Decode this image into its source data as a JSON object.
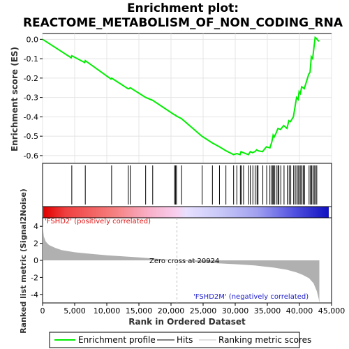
{
  "title_line1": "Enrichment plot:",
  "title_line2": "REACTOME_METABOLISM_OF_NON_CODING_RNA",
  "colors": {
    "profile": "#00ee00",
    "hits": "#000000",
    "metric_fill": "#b0b0b0",
    "positive_label": "#e01010",
    "negative_label": "#2020cc",
    "zero_line": "#bbbbbb"
  },
  "chart_data": {
    "type": "line",
    "xlabel": "Rank in Ordered Dataset",
    "x_ticks": [
      0,
      5000,
      10000,
      15000,
      20000,
      25000,
      30000,
      35000,
      40000,
      45000
    ],
    "x_tick_labels": [
      "0",
      "5,000",
      "10,000",
      "15,000",
      "20,000",
      "25,000",
      "30,000",
      "35,000",
      "40,000",
      "45,000"
    ],
    "xlim": [
      0,
      45000
    ],
    "dataset_size": 43100,
    "es_panel": {
      "ylabel": "Enrichment score (ES)",
      "ylim": [
        -0.64,
        0.03
      ],
      "y_ticks": [
        0.0,
        -0.1,
        -0.2,
        -0.3,
        -0.4,
        -0.5,
        -0.6
      ],
      "y_tick_labels": [
        "0.0",
        "-0.1",
        "-0.2",
        "-0.3",
        "-0.4",
        "-0.5",
        "-0.6"
      ],
      "grid": true,
      "series": [
        {
          "name": "Enrichment profile",
          "x": [
            0,
            4450,
            4550,
            6550,
            6650,
            10650,
            10750,
            13300,
            13450,
            13650,
            16050,
            17150,
            20550,
            20650,
            20800,
            21650,
            24800,
            26450,
            27550,
            28550,
            29750,
            30250,
            30750,
            30900,
            31250,
            32050,
            32350,
            32700,
            33050,
            33350,
            33550,
            34250,
            34850,
            35400,
            35700,
            35900,
            36050,
            36350,
            36650,
            37050,
            37550,
            38050,
            38350,
            38600,
            39050,
            39300,
            39550,
            39800,
            39950,
            40150,
            40350,
            40550,
            40750,
            41450,
            41650,
            41850,
            42050,
            42250,
            42450,
            42650,
            42850,
            43100
          ],
          "y": [
            0.0,
            -0.095,
            -0.085,
            -0.12,
            -0.11,
            -0.205,
            -0.2,
            -0.255,
            -0.255,
            -0.25,
            -0.3,
            -0.315,
            -0.39,
            -0.39,
            -0.395,
            -0.41,
            -0.5,
            -0.535,
            -0.555,
            -0.575,
            -0.595,
            -0.59,
            -0.595,
            -0.58,
            -0.585,
            -0.595,
            -0.58,
            -0.585,
            -0.58,
            -0.57,
            -0.575,
            -0.58,
            -0.555,
            -0.56,
            -0.53,
            -0.495,
            -0.505,
            -0.485,
            -0.46,
            -0.465,
            -0.445,
            -0.46,
            -0.42,
            -0.425,
            -0.4,
            -0.35,
            -0.3,
            -0.31,
            -0.27,
            -0.28,
            -0.245,
            -0.25,
            -0.255,
            -0.18,
            -0.17,
            -0.09,
            -0.1,
            -0.045,
            0.01,
            0.005,
            -0.005,
            -0.01
          ]
        }
      ]
    },
    "hits": [
      4550,
      6650,
      10750,
      13350,
      13650,
      16050,
      17150,
      20550,
      20700,
      20850,
      21650,
      24850,
      26450,
      27550,
      28550,
      29750,
      30250,
      30800,
      30950,
      31300,
      32100,
      32350,
      32750,
      33100,
      33400,
      33550,
      34300,
      34900,
      35400,
      35700,
      35850,
      36000,
      36100,
      36400,
      36650,
      36800,
      37100,
      37600,
      38100,
      38400,
      38650,
      39100,
      39350,
      39600,
      39800,
      40000,
      40200,
      40400,
      40600,
      40800,
      41500,
      41700,
      41900,
      42100,
      42300,
      42500,
      42700
    ],
    "metric_panel": {
      "ylabel": "Ranked list metric (Signal2Noise)",
      "ylim": [
        -5,
        5
      ],
      "y_ticks": [
        4,
        2,
        0,
        -2,
        -4
      ],
      "y_tick_labels": [
        "4",
        "2",
        "0",
        "-2",
        "-4"
      ],
      "x": [
        0,
        200,
        500,
        1000,
        2000,
        3000,
        5000,
        7000,
        10000,
        15000,
        20924,
        25000,
        30000,
        33000,
        36000,
        38000,
        39500,
        40500,
        41500,
        42200,
        42700,
        43000,
        43100
      ],
      "y": [
        4.2,
        2.8,
        2.2,
        1.8,
        1.45,
        1.2,
        0.95,
        0.8,
        0.6,
        0.35,
        0.0,
        -0.25,
        -0.45,
        -0.6,
        -0.85,
        -1.1,
        -1.4,
        -1.7,
        -2.1,
        -2.7,
        -3.6,
        -4.5,
        -5.0
      ],
      "positive_label": "'FSHD2' (positively correlated)",
      "negative_label": "'FSHD2M' (negatively correlated)",
      "zero_cross_label": "Zero cross at 20924",
      "zero_cross": 20924
    },
    "legend": {
      "placement": "bottom",
      "items": [
        "Enrichment profile",
        "Hits",
        "Ranking metric scores"
      ]
    }
  }
}
